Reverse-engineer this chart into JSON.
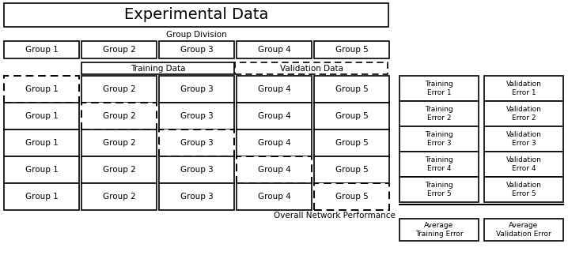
{
  "title": "Experimental Data",
  "group_division_label": "Group Division",
  "training_data_label": "Training Data",
  "validation_data_label": "Validation Data",
  "overall_label": "Overall Network Performance",
  "groups": [
    "Group 1",
    "Group 2",
    "Group 3",
    "Group 4",
    "Group 5"
  ],
  "error_rows": [
    [
      "Training\nError 1",
      "Validation\nError 1"
    ],
    [
      "Training\nError 2",
      "Validation\nError 2"
    ],
    [
      "Training\nError 3",
      "Validation\nError 3"
    ],
    [
      "Training\nError 4",
      "Validation\nError 4"
    ],
    [
      "Training\nError 5",
      "Validation\nError 5"
    ]
  ],
  "avg_labels": [
    "Average\nTraining Error",
    "Average\nValidation Error"
  ],
  "dashed_col_per_row": [
    0,
    1,
    2,
    3,
    4
  ],
  "fig_width": 7.18,
  "fig_height": 3.28,
  "bg_color": "#ffffff",
  "box_color": "#ffffff",
  "border_color": "#000000",
  "text_color": "#000000",
  "font_size": 7.5,
  "small_font_size": 6.5,
  "title_font_size": 14,
  "label_font_size": 7.5
}
